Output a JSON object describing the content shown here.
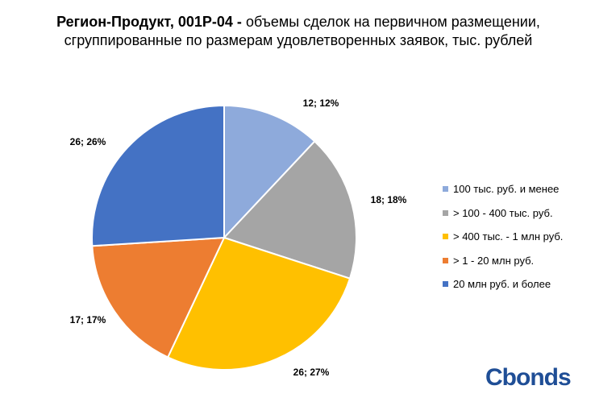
{
  "title": {
    "bold_part": "Регион-Продукт, 001Р-04 -",
    "rest": " объемы сделок на первичном размещении, сгруппированные по размерам удовлетворенных заявок, тыс. рублей"
  },
  "logo": {
    "text": "Cbonds"
  },
  "chart_data": {
    "type": "pie",
    "title": "Регион-Продукт, 001Р-04 - объемы сделок на первичном размещении, сгруппированные по размерам удовлетворенных заявок, тыс. рублей",
    "legend_position": "right",
    "slices": [
      {
        "label": "100 тыс. руб. и менее",
        "value": 12,
        "percent": 12,
        "data_label": "12; 12%",
        "color": "#8eaadb"
      },
      {
        "label": "> 100 - 400 тыс. руб.",
        "value": 18,
        "percent": 18,
        "data_label": "18; 18%",
        "color": "#a5a5a5"
      },
      {
        "label": "> 400 тыс. - 1 млн руб.",
        "value": 26,
        "percent": 27,
        "data_label": "26; 27%",
        "color": "#ffc000"
      },
      {
        "label": "> 1 - 20 млн руб.",
        "value": 17,
        "percent": 17,
        "data_label": "17; 17%",
        "color": "#ed7d31"
      },
      {
        "label": "20 млн руб. и более",
        "value": 26,
        "percent": 26,
        "data_label": "26; 26%",
        "color": "#4472c4"
      }
    ]
  }
}
